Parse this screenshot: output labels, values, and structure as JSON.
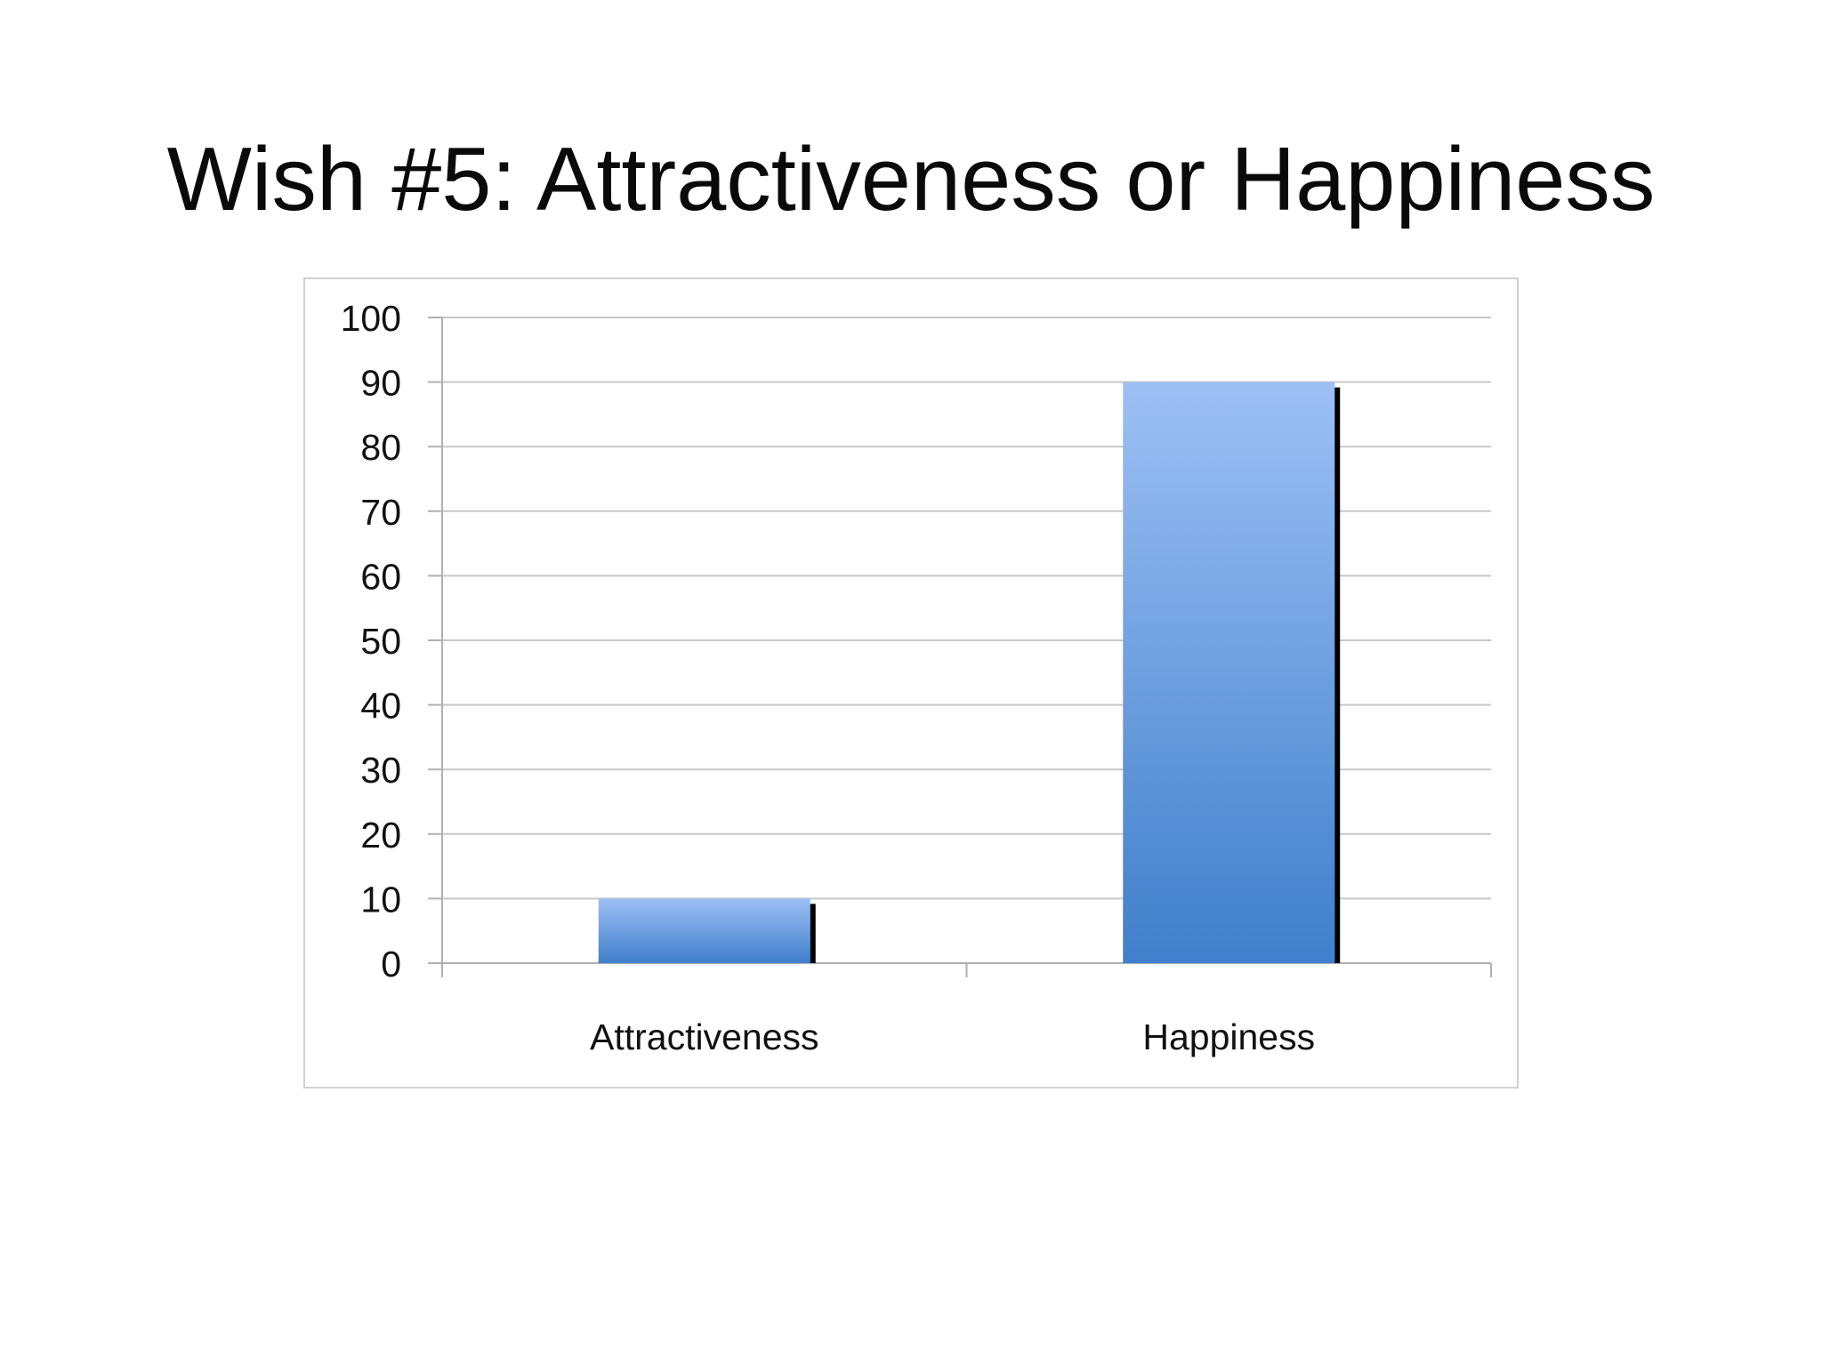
{
  "slide": {
    "title": "Wish #5: Attractiveness or Happiness"
  },
  "chart_data": {
    "type": "bar",
    "categories": [
      "Attractiveness",
      "Happiness"
    ],
    "values": [
      10,
      90
    ],
    "title": "",
    "xlabel": "",
    "ylabel": "",
    "ylim": [
      0,
      100
    ],
    "yticks": [
      0,
      10,
      20,
      30,
      40,
      50,
      60,
      70,
      80,
      90,
      100
    ],
    "grid": true,
    "legend": "none",
    "colors": {
      "bar_top": "#9dc0f5",
      "bar_bottom": "#3f7fcb",
      "bar_edge": "#000000",
      "grid": "#c8c8c8",
      "frame": "#d0d0d0",
      "axis": "#b0b0b0"
    }
  }
}
